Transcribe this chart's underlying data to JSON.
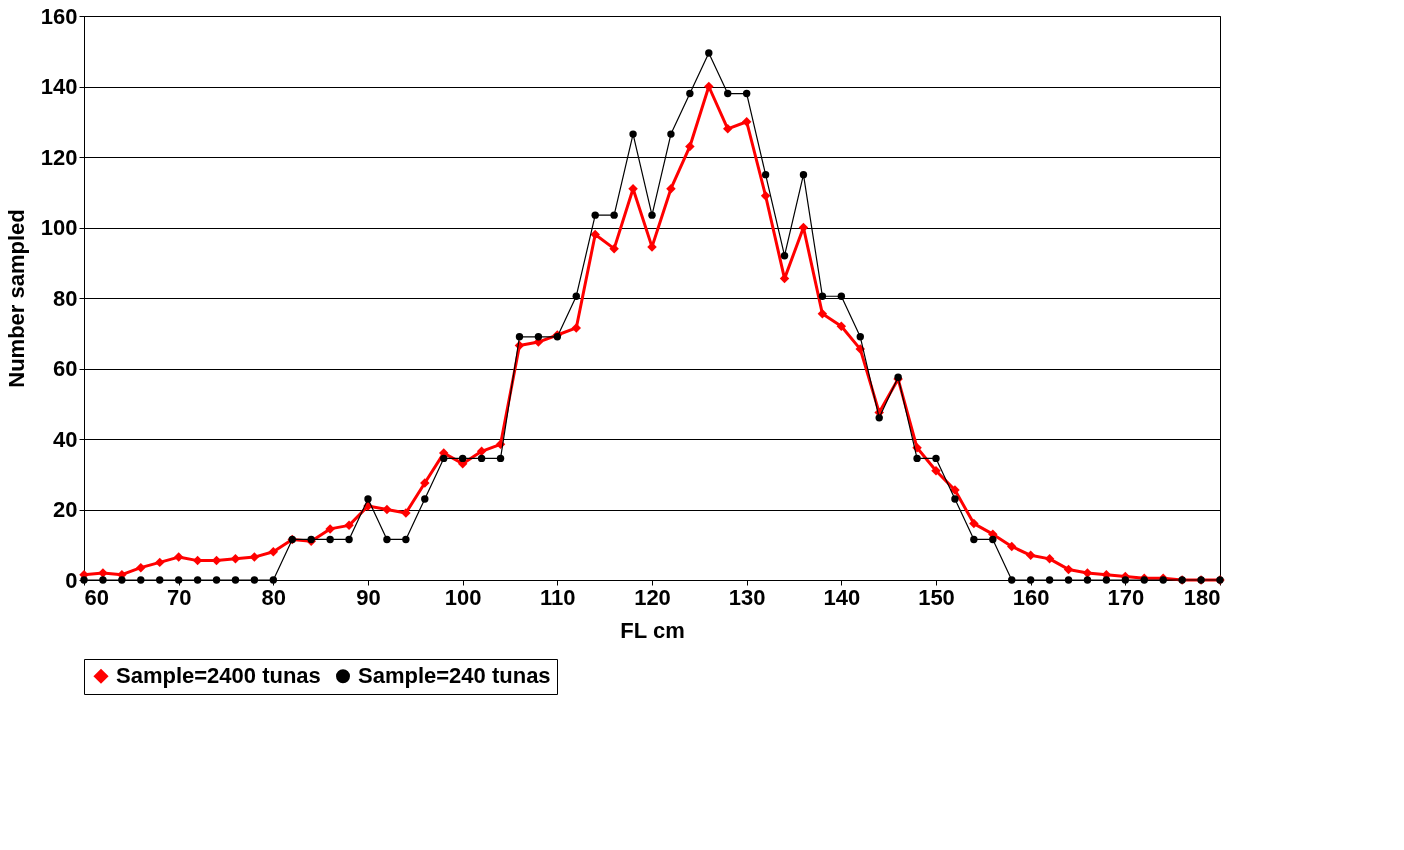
{
  "chart_data": {
    "type": "line",
    "xlabel": "FL cm",
    "ylabel": "Number sampled",
    "x": [
      60,
      62,
      64,
      66,
      68,
      70,
      72,
      74,
      76,
      78,
      80,
      82,
      84,
      86,
      88,
      90,
      92,
      94,
      96,
      98,
      100,
      102,
      104,
      106,
      108,
      110,
      112,
      114,
      116,
      118,
      120,
      122,
      124,
      126,
      128,
      130,
      132,
      134,
      136,
      138,
      140,
      142,
      144,
      146,
      148,
      150,
      152,
      154,
      156,
      158,
      160,
      162,
      164,
      166,
      168,
      170,
      172,
      174,
      176,
      178,
      180
    ],
    "series": [
      {
        "name": "Sample=2400 tunas",
        "color": "#ff0000",
        "marker": "diamond",
        "values": [
          1.5,
          2,
          1.5,
          3.5,
          5,
          6.5,
          5.5,
          5.5,
          6,
          6.5,
          8,
          11.5,
          11,
          14.5,
          15.5,
          21,
          20,
          19,
          27.5,
          36,
          33,
          36.5,
          38.5,
          66.5,
          67.5,
          69.5,
          71.5,
          98,
          94,
          111,
          94.5,
          111,
          123,
          140,
          128,
          130,
          109,
          85.5,
          100,
          75.5,
          72,
          65.5,
          47.5,
          57,
          37.5,
          31,
          25.5,
          16,
          13,
          9.5,
          7,
          6,
          3,
          2,
          1.5,
          1,
          0.5,
          0.5,
          0,
          0,
          0
        ]
      },
      {
        "name": "Sample=240 tunas",
        "color": "#000000",
        "marker": "circle",
        "values": [
          0,
          0,
          0,
          0,
          0,
          0,
          0,
          0,
          0,
          0,
          0,
          11.5,
          11.5,
          11.5,
          11.5,
          23,
          11.5,
          11.5,
          23,
          34.5,
          34.5,
          34.5,
          34.5,
          69,
          69,
          69,
          80.5,
          103.5,
          103.5,
          126.5,
          103.5,
          126.5,
          138,
          149.5,
          138,
          138,
          115,
          92,
          115,
          80.5,
          80.5,
          69,
          46,
          57.5,
          34.5,
          34.5,
          23,
          11.5,
          11.5,
          0,
          0,
          0,
          0,
          0,
          0,
          0,
          0,
          0,
          0,
          0,
          0
        ]
      }
    ],
    "xlim": [
      60,
      180
    ],
    "xticks": [
      60,
      70,
      80,
      90,
      100,
      110,
      120,
      130,
      140,
      150,
      160,
      170,
      180
    ],
    "ylim": [
      0,
      160
    ],
    "yticks": [
      0,
      20,
      40,
      60,
      80,
      100,
      120,
      140,
      160
    ],
    "grid": "y",
    "legend": "bottom"
  }
}
